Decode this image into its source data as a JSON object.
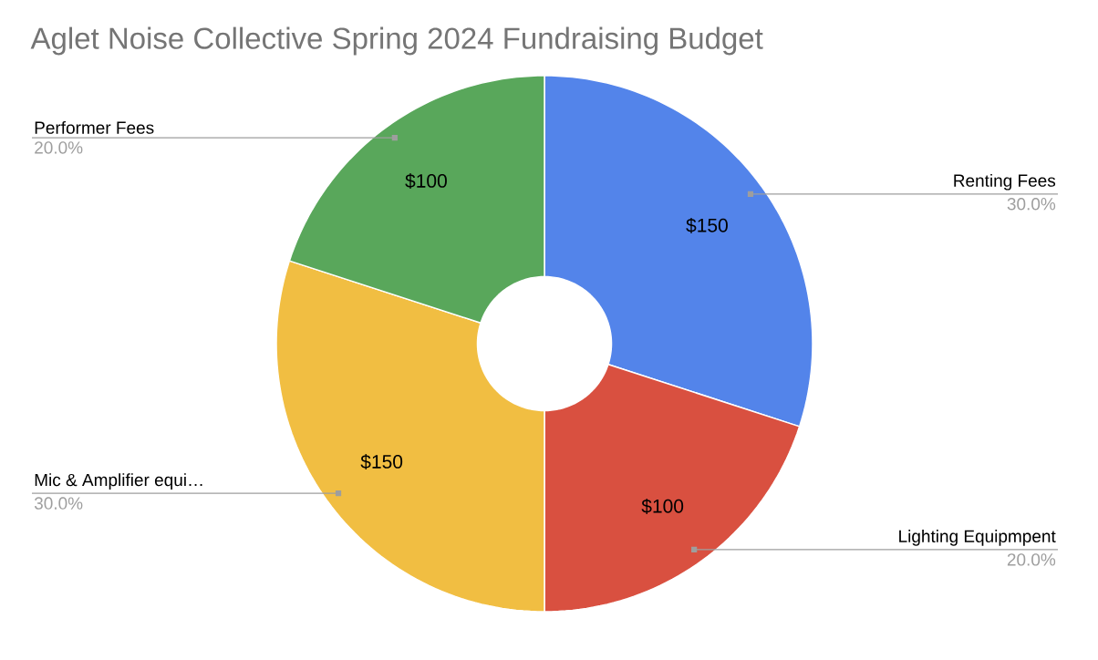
{
  "chart_data": {
    "type": "donut",
    "title": "Aglet Noise Collective Spring 2024 Fundraising Budget",
    "categories": [
      "Renting Fees",
      "Lighting Equipmpent",
      "Mic & Amplifier equi…",
      "Performer Fees"
    ],
    "values": [
      150,
      100,
      150,
      100
    ],
    "colors": [
      "#5384ea",
      "#d95040",
      "#f1be42",
      "#59a75b"
    ],
    "value_labels": [
      "$150",
      "$100",
      "$150",
      "$100"
    ],
    "annotations": [
      "30.0%",
      "20.0%",
      "30.0%",
      "20.0%"
    ]
  }
}
